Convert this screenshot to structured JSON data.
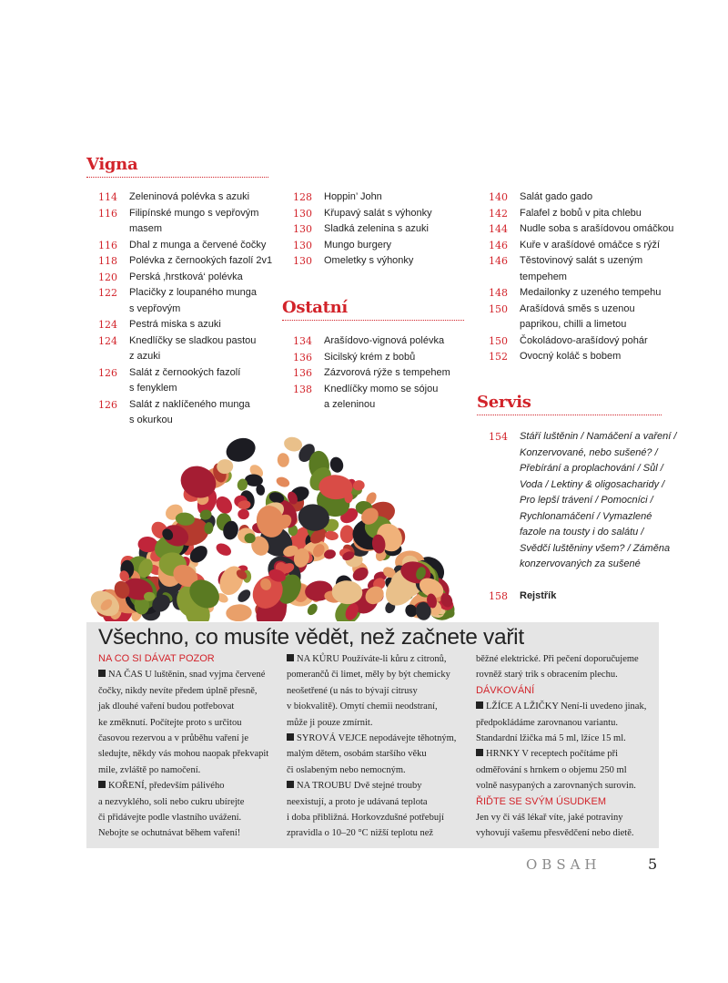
{
  "sections": [
    {
      "title": "Vigna",
      "entries": []
    },
    {
      "title": "Ostatní",
      "entries": []
    },
    {
      "title": "Servis",
      "entries": []
    }
  ],
  "columns": [
    [
      {
        "page": "114",
        "text": "Zeleninová polévka s azuki"
      },
      {
        "page": "116",
        "text": "Filipínské mungo s vepřovým\nmasem"
      },
      {
        "page": "116",
        "text": "Dhal z munga a červené čočky"
      },
      {
        "page": "118",
        "text": "Polévka z černookých fazolí 2v1"
      },
      {
        "page": "120",
        "text": "Perská ‚hrstková‘ polévka"
      },
      {
        "page": "122",
        "text": "Placičky z loupaného munga\ns vepřovým"
      },
      {
        "page": "124",
        "text": "Pestrá miska s azuki"
      },
      {
        "page": "124",
        "text": "Knedlíčky se sladkou pastou\nz azuki"
      },
      {
        "page": "126",
        "text": "Salát z černookých fazolí\ns fenyklem"
      },
      {
        "page": "126",
        "text": "Salát z naklíčeného munga\ns okurkou"
      }
    ],
    [
      {
        "page": "128",
        "text": "Hoppin’ John"
      },
      {
        "page": "130",
        "text": "Křupavý salát s výhonky"
      },
      {
        "page": "130",
        "text": "Sladká zelenina s azuki"
      },
      {
        "page": "130",
        "text": "Mungo burgery"
      },
      {
        "page": "130",
        "text": "Omeletky s výhonky"
      }
    ],
    [
      {
        "page": "134",
        "text": "Arašídovo-vignová polévka"
      },
      {
        "page": "136",
        "text": "Sicilský krém z bobů"
      },
      {
        "page": "136",
        "text": "Zázvorová rýže s tempehem"
      },
      {
        "page": "138",
        "text": "Knedlíčky momo se sójou\na zeleninou"
      }
    ],
    [
      {
        "page": "140",
        "text": "Salát gado gado"
      },
      {
        "page": "142",
        "text": "Falafel z bobů v pita chlebu"
      },
      {
        "page": "144",
        "text": "Nudle soba s arašídovou omáčkou"
      },
      {
        "page": "146",
        "text": "Kuře v arašídové omáčce s rýží"
      },
      {
        "page": "146",
        "text": "Těstovinový salát s uzeným\ntempehem"
      },
      {
        "page": "148",
        "text": "Medailonky z uzeného tempehu"
      },
      {
        "page": "150",
        "text": "Arašídová směs s uzenou\npaprikou, chilli a limetou"
      },
      {
        "page": "150",
        "text": "Čokoládovo-arašídový pohár"
      },
      {
        "page": "152",
        "text": "Ovocný koláč s bobem"
      }
    ],
    [
      {
        "page": "154",
        "text": "Stáří luštěnin / Namáčení a vaření /\nKonzervované, nebo sušené? /\nPřebírání a proplachování / Sůl /\nVoda / Lektiny & oligosacharidy /\nPro lepší trávení / Pomocníci /\nRychlonamáčení / Vymazlené\nfazole na tousty i do salátu /\nSvědčí luštěniny všem? / Záměna\nkonzervovaných za sušené"
      }
    ],
    [
      {
        "page": "158",
        "text": "Rejstřík"
      }
    ]
  ],
  "info_box": {
    "title": "Všechno, co musíte vědět, než začnete vařit",
    "col1": [
      {
        "type": "heading",
        "text": "NA CO SI DÁVAT POZOR"
      },
      {
        "type": "para",
        "label": "NA ČAS",
        "text": "  U luštěnin, snad vyjma červené\nčočky, nikdy nevíte předem úplně přesně,\njak dlouhé vaření budou potřebovat\nke změknutí. Počítejte proto s určitou\nčasovou rezervou a v průběhu vaření je\nsledujte, někdy vás mohou naopak překvapit\nmile, zvláště po namočení."
      },
      {
        "type": "para",
        "label": "KOŘENÍ",
        "text": ", především pálivého\na nezvyklého, soli nebo cukru ubírejte\nči přidávejte podle vlastního uvážení.\nNebojte se ochutnávat během vaření!"
      }
    ],
    "col2": [
      {
        "type": "para",
        "label": "NA KŮRU",
        "text": "  Používáte-li kůru z citronů,\npomerančů či limet, měly by být chemicky\nneošetřené (u nás to bývají citrusy\nv biokvalitě). Omytí chemii neodstraní,\nmůže ji pouze zmírnit."
      },
      {
        "type": "para",
        "label": "SYROVÁ VEJCE",
        "text": " nepodávejte těhotným,\nmalým dětem, osobám staršího věku\nči oslabeným nebo nemocným."
      },
      {
        "type": "para",
        "label": "NA TROUBU",
        "text": "  Dvě stejné trouby\nneexistují, a proto je udávaná teplota\ni doba přibližná. Horkovzdušné potřebují\nzpravidla o 10–20 °C nižší teplotu než"
      }
    ],
    "col3": [
      {
        "type": "plain",
        "text": "běžné elektrické. Při pečení doporučujeme\nrovněž starý trik s obracením plechu."
      },
      {
        "type": "heading",
        "text": "DÁVKOVÁNÍ"
      },
      {
        "type": "para",
        "label": "LŽÍCE A LŽIČKY",
        "text": "  Není-li uvedeno jinak,\npředpokládáme zarovnanou variantu.\nStandardní lžička má 5 ml, lžíce 15 ml."
      },
      {
        "type": "para",
        "label": "HRNKY",
        "text": "  V receptech počítáme při\nodměřování s hrnkem o objemu 250 ml\nvolně nasypaných a zarovnaných surovin."
      },
      {
        "type": "heading",
        "text": "ŘIĎTE SE SVÝM ÚSUDKEM"
      },
      {
        "type": "plain",
        "text": "Jen vy či váš lékař víte, jaké potraviny\nvyhovují vašemu přesvědčení nebo dietě."
      }
    ]
  },
  "footer": {
    "section_label": "OBSAH",
    "page_number": "5"
  },
  "colors": {
    "accent": "#d2232a",
    "box_background": "#e5e5e5"
  },
  "image": {
    "subject": "beans-and-legumes-pile"
  }
}
